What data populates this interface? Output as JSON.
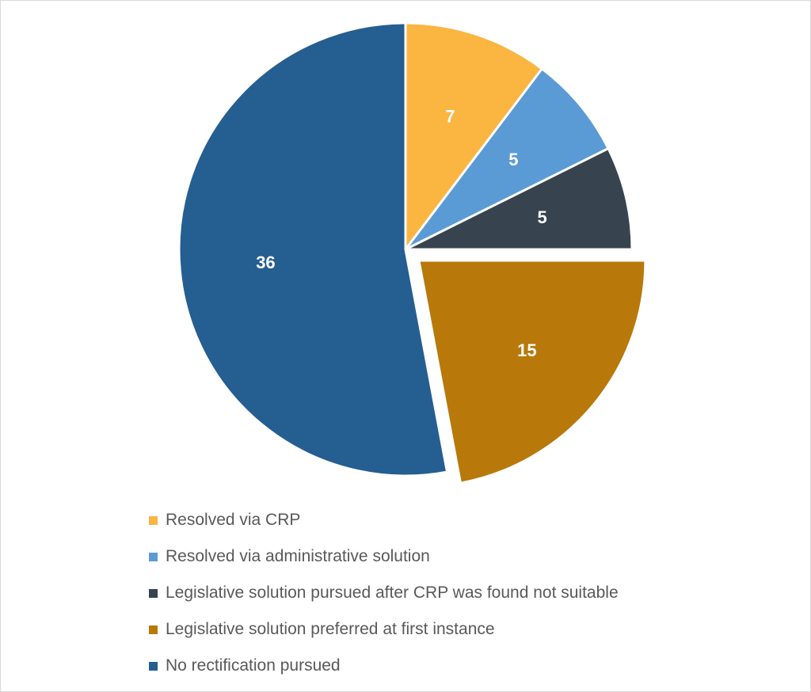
{
  "chart_data": {
    "type": "pie",
    "categories": [
      "Resolved via CRP",
      "Resolved via administrative solution",
      "Legislative solution pursued after CRP was found not suitable",
      "Legislative solution preferred at first instance",
      "No rectification pursued"
    ],
    "values": [
      7,
      5,
      5,
      15,
      36
    ],
    "data_labels": [
      "7",
      "5",
      "5",
      "15",
      "36"
    ],
    "colors": [
      "#FBB541",
      "#5B9BD5",
      "#37444F",
      "#B8790A",
      "#255E91"
    ],
    "label_colors": [
      "#ffffff",
      "#ffffff",
      "#ffffff",
      "#ffffff",
      "#ffffff"
    ],
    "exploded": [
      false,
      false,
      false,
      true,
      false
    ],
    "start_angle": "12 o'clock, clockwise",
    "legend_position": "bottom",
    "title": "",
    "grid": false
  }
}
